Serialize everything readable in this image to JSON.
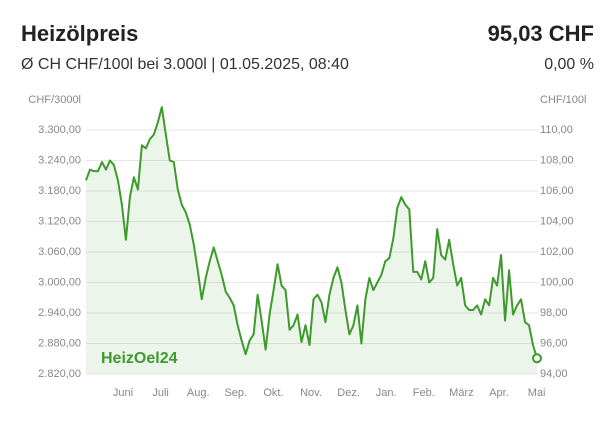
{
  "chart_data": {
    "type": "line",
    "title": "Heizölpreis",
    "price": "95,03 CHF",
    "subtitle": "Ø CH CHF/100l bei 3.000l | 01.05.2025, 08:40",
    "change": "0,00 %",
    "watermark": "HeizOel24",
    "ylabel": "CHF/3000l",
    "y2label": "CHF/100l",
    "xticks": [
      "Juni",
      "Juli",
      "Aug.",
      "Sep.",
      "Okt.",
      "Nov.",
      "Dez.",
      "Jan.",
      "Feb.",
      "März",
      "Apr.",
      "Mai"
    ],
    "ylim": [
      2820,
      3360
    ],
    "yticks": [
      {
        "value": 2820,
        "label": "2.820,00"
      },
      {
        "value": 2880,
        "label": "2.880,00"
      },
      {
        "value": 2940,
        "label": "2.940,00"
      },
      {
        "value": 3000,
        "label": "3.000,00"
      },
      {
        "value": 3060,
        "label": "3.060,00"
      },
      {
        "value": 3120,
        "label": "3.120,00"
      },
      {
        "value": 3180,
        "label": "3.180,00"
      },
      {
        "value": 3240,
        "label": "3.240,00"
      },
      {
        "value": 3300,
        "label": "3.300,00"
      }
    ],
    "y2lim": [
      94,
      112
    ],
    "y2ticks": [
      {
        "value": 94,
        "label": "94,00"
      },
      {
        "value": 96,
        "label": "96,00"
      },
      {
        "value": 98,
        "label": "98,00"
      },
      {
        "value": 100,
        "label": "100,00"
      },
      {
        "value": 102,
        "label": "102,00"
      },
      {
        "value": 104,
        "label": "104,00"
      },
      {
        "value": 106,
        "label": "106,00"
      },
      {
        "value": 108,
        "label": "108,00"
      },
      {
        "value": 110,
        "label": "110,00"
      }
    ],
    "grid": true,
    "series": [
      {
        "color": "#3f9a2e",
        "axis": "y2",
        "values": [
          106.7,
          107.4,
          107.3,
          107.3,
          107.9,
          107.4,
          108.0,
          107.7,
          106.7,
          105.1,
          102.8,
          105.6,
          106.9,
          106.1,
          109.0,
          108.8,
          109.4,
          109.7,
          110.5,
          111.5,
          109.7,
          108.0,
          107.9,
          106.1,
          105.1,
          104.6,
          103.8,
          102.5,
          100.8,
          98.9,
          100.3,
          101.4,
          102.3,
          101.4,
          100.5,
          99.4,
          99.0,
          98.5,
          97.2,
          96.2,
          95.3,
          96.2,
          96.6,
          99.2,
          97.5,
          95.6,
          97.9,
          99.5,
          101.2,
          99.8,
          99.5,
          96.9,
          97.2,
          97.9,
          96.1,
          97.2,
          95.9,
          98.9,
          99.2,
          98.7,
          97.4,
          99.2,
          100.3,
          101.0,
          100.0,
          98.2,
          96.6,
          97.2,
          98.5,
          96.0,
          98.9,
          100.3,
          99.5,
          100.0,
          100.5,
          101.4,
          101.6,
          102.9,
          104.9,
          105.6,
          105.1,
          104.8,
          100.7,
          100.7,
          100.2,
          101.4,
          100.0,
          100.3,
          103.5,
          101.8,
          101.5,
          102.8,
          101.2,
          99.8,
          100.3,
          98.5,
          98.2,
          98.2,
          98.5,
          97.9,
          98.9,
          98.5,
          100.3,
          99.8,
          101.8,
          97.5,
          100.8,
          97.9,
          98.5,
          98.9,
          97.4,
          97.2,
          95.9,
          95.03
        ]
      }
    ]
  }
}
